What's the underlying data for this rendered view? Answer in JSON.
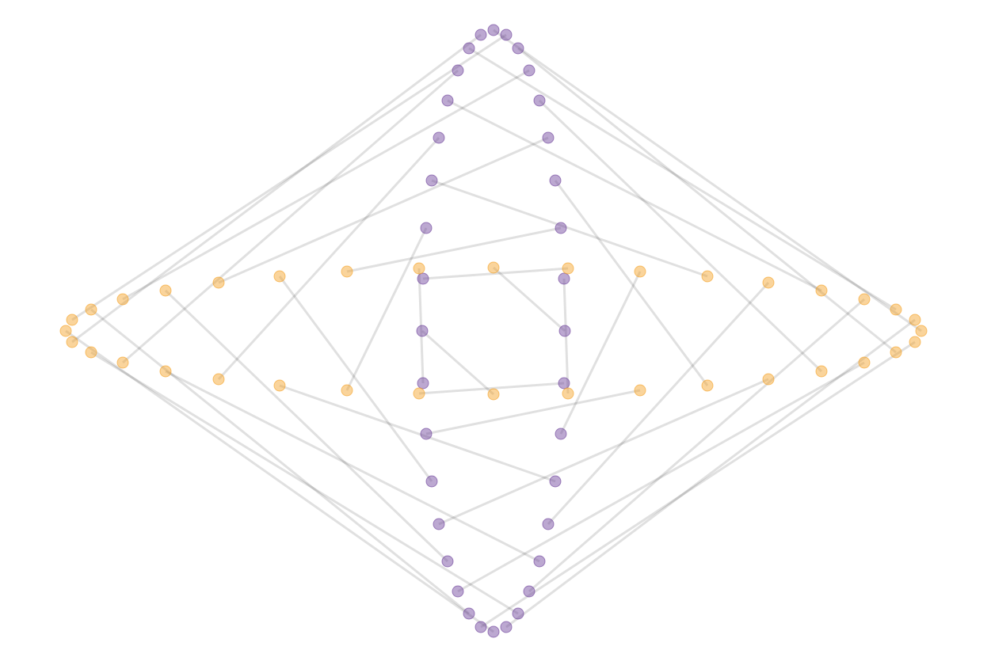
{
  "chart_data": {
    "type": "scatter",
    "xlim": [
      -6.23,
      6.28
    ],
    "ylim": [
      -4.27,
      4.18
    ],
    "link_color": "#000000",
    "series": [
      {
        "color": "#6a3d9a",
        "x": [
          0.9,
          0.89,
          0.85,
          0.78,
          0.69,
          0.58,
          0.45,
          0.31,
          0.16,
          0,
          -0.16,
          -0.31,
          -0.45,
          -0.58,
          -0.69,
          -0.78,
          -0.85,
          -0.89,
          -0.9,
          -0.89,
          -0.85,
          -0.78,
          -0.69,
          -0.58,
          -0.45,
          -0.31,
          -0.16,
          0,
          0.16,
          0.31,
          0.45,
          0.58,
          0.69,
          0.78,
          0.85,
          0.89
        ],
        "values": [
          0,
          0.66,
          1.3,
          1.9,
          2.44,
          2.91,
          3.29,
          3.57,
          3.74,
          3.8,
          3.74,
          3.57,
          3.29,
          2.91,
          2.44,
          1.9,
          1.3,
          0.66,
          0,
          -0.66,
          -1.3,
          -1.9,
          -2.44,
          -2.91,
          -3.29,
          -3.57,
          -3.74,
          -3.8,
          -3.74,
          -3.57,
          -3.29,
          -2.91,
          -2.44,
          -1.9,
          -1.3,
          -0.66
        ]
      },
      {
        "color": "#f5a021",
        "x": [
          0,
          0.94,
          -1.85,
          2.7,
          -3.47,
          4.14,
          -4.68,
          5.08,
          -5.32,
          5.4,
          -5.32,
          5.08,
          -4.68,
          4.14,
          -3.47,
          2.7,
          -1.85,
          0.94,
          0,
          -0.94,
          1.85,
          -2.7,
          3.47,
          -4.14,
          4.68,
          -5.08,
          5.32,
          -5.4,
          5.32,
          -5.08,
          4.68,
          -4.14,
          3.47,
          -2.7,
          1.85,
          -0.94
        ],
        "values": [
          0.8,
          -0.79,
          0.75,
          -0.69,
          0.61,
          -0.51,
          0.4,
          -0.27,
          0.14,
          0,
          -0.14,
          0.27,
          -0.4,
          0.51,
          -0.61,
          0.69,
          -0.75,
          0.79,
          -0.8,
          0.79,
          -0.75,
          0.69,
          -0.61,
          0.51,
          -0.4,
          0.27,
          -0.14,
          0,
          0.14,
          -0.27,
          0.4,
          -0.51,
          0.61,
          -0.69,
          0.75,
          -0.79
        ]
      }
    ]
  }
}
